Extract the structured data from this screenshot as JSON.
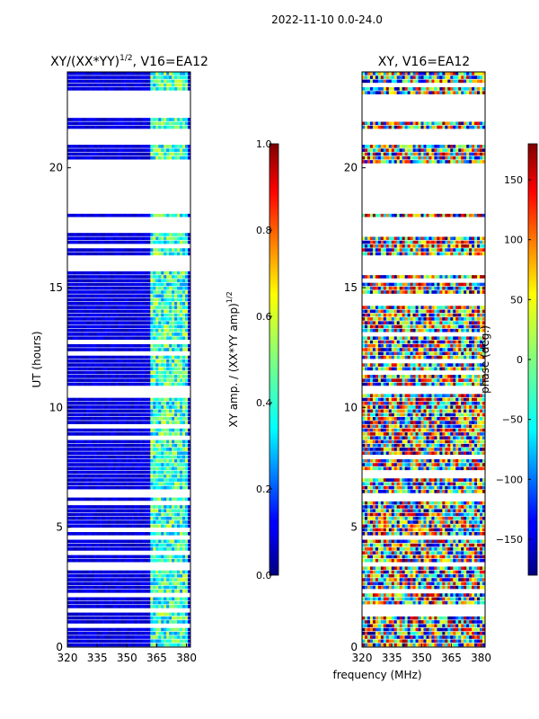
{
  "suptitle": "2022-11-10 0.0-24.0",
  "xlabel": "frequency (MHz)",
  "chart_data": [
    {
      "type": "heatmap",
      "title_main": "XY/(XX*YY)",
      "title_sup": "1/2",
      "title_rest": ", V16=EA12",
      "xlabel": "frequency (MHz)",
      "ylabel": "UT (hours)",
      "xlim": [
        320,
        382
      ],
      "ylim": [
        0,
        24
      ],
      "xticks": [
        320,
        335,
        350,
        365,
        380
      ],
      "yticks": [
        0,
        5,
        10,
        15,
        20
      ],
      "colorbar": {
        "label_main": "XY amp. / (XX*YY amp)",
        "label_sup": "1/2",
        "range": [
          0.0,
          1.0
        ],
        "ticks": [
          "0.0",
          "0.2",
          "0.4",
          "0.6",
          "0.8",
          "1.0"
        ],
        "tick_values": [
          0.0,
          0.2,
          0.4,
          0.6,
          0.8,
          1.0
        ],
        "colormap": "jet"
      }
    },
    {
      "type": "heatmap",
      "title": "XY, V16=EA12",
      "xlabel": "frequency (MHz)",
      "ylabel": "",
      "xlim": [
        320,
        382
      ],
      "ylim": [
        0,
        24
      ],
      "xticks": [
        320,
        335,
        350,
        365,
        380
      ],
      "yticks": [
        0,
        5,
        10,
        15,
        20
      ],
      "colorbar": {
        "label": "phase (deg.)",
        "range": [
          -180,
          180
        ],
        "ticks": [
          "150",
          "100",
          "50",
          "0",
          "−50",
          "−100",
          "−150"
        ],
        "tick_values": [
          150,
          100,
          50,
          0,
          -50,
          -100,
          -150
        ],
        "colormap": "jet"
      }
    }
  ]
}
